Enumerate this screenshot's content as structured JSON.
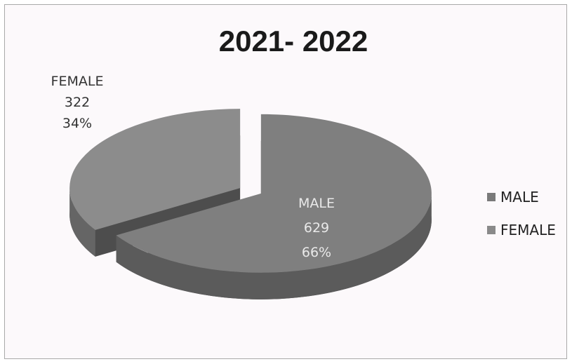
{
  "chart_data": {
    "type": "pie",
    "title": "2021- 2022",
    "slices": [
      {
        "label": "MALE",
        "value": 629,
        "percent": "66%",
        "color": "#7f7f7f"
      },
      {
        "label": "FEMALE",
        "value": 322,
        "percent": "34%",
        "color": "#8c8c8c"
      }
    ],
    "legend": {
      "position": "right",
      "entries": [
        "MALE",
        "FEMALE"
      ]
    },
    "data_labels": [
      {
        "category": "MALE",
        "value": "629",
        "percent": "66%"
      },
      {
        "category": "FEMALE",
        "value": "322",
        "percent": "34%"
      }
    ],
    "style": "3d-exploded"
  }
}
